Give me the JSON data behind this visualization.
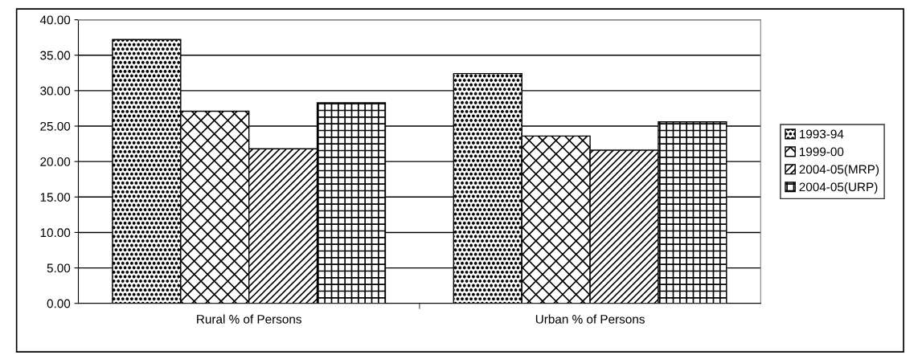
{
  "chart_data": {
    "type": "bar",
    "categories": [
      "Rural % of Persons",
      "Urban % of Persons"
    ],
    "series": [
      {
        "name": "1993-94",
        "color": "#000000",
        "values": [
          37.2,
          32.4
        ]
      },
      {
        "name": "1999-00",
        "color": "#000000",
        "values": [
          27.1,
          23.6
        ]
      },
      {
        "name": "2004-05(MRP)",
        "color": "#000000",
        "values": [
          21.8,
          21.6
        ]
      },
      {
        "name": "2004-05(URP)",
        "color": "#000000",
        "values": [
          28.3,
          25.6
        ]
      }
    ],
    "ylim": [
      0,
      40
    ],
    "yticks": [
      {
        "value": 0,
        "label": "0.00"
      },
      {
        "value": 5,
        "label": "5.00"
      },
      {
        "value": 10,
        "label": "10.00"
      },
      {
        "value": 15,
        "label": "15.00"
      },
      {
        "value": 20,
        "label": "20.00"
      },
      {
        "value": 25,
        "label": "25.00"
      },
      {
        "value": 30,
        "label": "30.00"
      },
      {
        "value": 35,
        "label": "35.00"
      },
      {
        "value": 40,
        "label": "40.00"
      }
    ],
    "grid": "y",
    "legend": "right"
  }
}
